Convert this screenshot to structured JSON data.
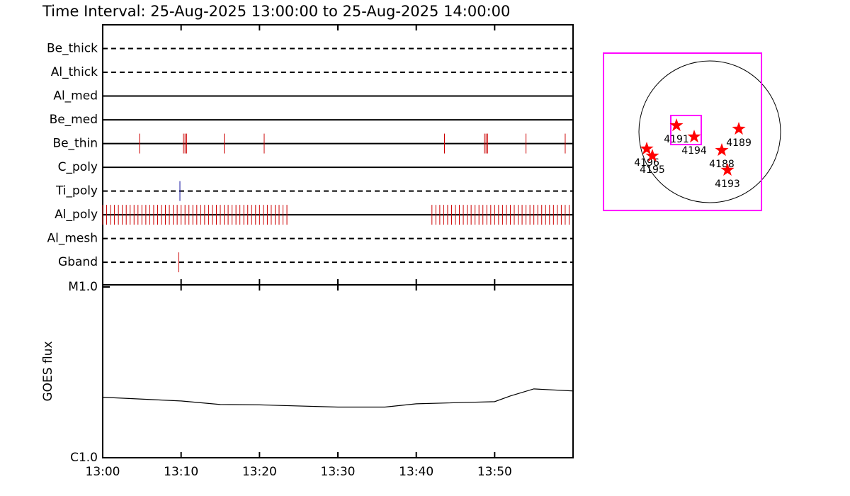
{
  "chart_data": [
    {
      "type": "timeline",
      "title": "Time Interval: 25-Aug-2025 13:00:00 to 25-Aug-2025 14:00:00",
      "xlim": [
        0,
        60
      ],
      "xticks": [
        {
          "value": 0,
          "label": "13:00"
        },
        {
          "value": 10,
          "label": "13:10"
        },
        {
          "value": 20,
          "label": "13:20"
        },
        {
          "value": 30,
          "label": "13:30"
        },
        {
          "value": 40,
          "label": "13:40"
        },
        {
          "value": 50,
          "label": "13:50"
        }
      ],
      "series": [
        {
          "name": "Be_thick",
          "style": "dashed",
          "color": "#cc0000",
          "values": []
        },
        {
          "name": "Al_thick",
          "style": "dashed",
          "color": "#cc0000",
          "values": []
        },
        {
          "name": "Al_med",
          "style": "solid",
          "color": "#cc0000",
          "values": []
        },
        {
          "name": "Be_med",
          "style": "solid",
          "color": "#cc0000",
          "values": []
        },
        {
          "name": "Be_thin",
          "style": "solid",
          "color": "#cc0000",
          "values": [
            4.7,
            10.3,
            10.5,
            10.7,
            15.5,
            20.6,
            43.6,
            48.7,
            48.9,
            49.1,
            54.0,
            59.0
          ]
        },
        {
          "name": "C_poly",
          "style": "solid",
          "color": "#cc0000",
          "values": []
        },
        {
          "name": "Ti_poly",
          "style": "dashed",
          "color": "#1a1aa0",
          "values": [
            9.85
          ]
        },
        {
          "name": "Al_poly",
          "style": "solid",
          "color": "#cc0000",
          "values": [
            0,
            0.5,
            1,
            1.5,
            2,
            2.5,
            3,
            3.5,
            4,
            4.5,
            5,
            5.5,
            6,
            6.5,
            7,
            7.5,
            8,
            8.5,
            9,
            9.5,
            10,
            10.5,
            11,
            11.5,
            12,
            12.5,
            13,
            13.5,
            14,
            14.5,
            15,
            15.5,
            16,
            16.5,
            17,
            17.5,
            18,
            18.5,
            19,
            19.5,
            20,
            20.5,
            21,
            21.5,
            22,
            22.5,
            23,
            23.5,
            42,
            42.5,
            43,
            43.5,
            44,
            44.5,
            45,
            45.5,
            46,
            46.5,
            47,
            47.5,
            48,
            48.5,
            49,
            49.5,
            50,
            50.5,
            51,
            51.5,
            52,
            52.5,
            53,
            53.5,
            54,
            54.5,
            55,
            55.5,
            56,
            56.5,
            57,
            57.5,
            58,
            58.5,
            59,
            59.5
          ]
        },
        {
          "name": "Al_mesh",
          "style": "dashed",
          "color": "#cc0000",
          "values": []
        },
        {
          "name": "Gband",
          "style": "dashed",
          "color": "#cc0000",
          "values": [
            9.7
          ]
        }
      ]
    },
    {
      "type": "line",
      "y_label": "GOES flux",
      "log_scale": true,
      "color": "#000000",
      "x": [
        0,
        10,
        15,
        20,
        30,
        36,
        40,
        50,
        52,
        55,
        60
      ],
      "values": [
        2.26e-06,
        2.15e-06,
        2.05e-06,
        2.04e-06,
        1.98e-06,
        1.98e-06,
        2.07e-06,
        2.13e-06,
        2.3e-06,
        2.53e-06,
        2.46e-06
      ],
      "ylim": [
        1e-06,
        1e-05
      ],
      "yticks": [
        {
          "value": 1e-06,
          "label": "C1.0"
        },
        {
          "value": 1e-05,
          "label": "M1.0"
        }
      ]
    },
    {
      "type": "disk",
      "radius": 960,
      "box_color": "#ff00ff",
      "star_color": "#ff0000",
      "fov": [
        [
          -1440,
          701,
          -1066,
          1066
        ],
        [
          -528,
          -115,
          -173,
          221
        ]
      ],
      "regions": [
        {
          "label": "4191",
          "x": -451,
          "y": 86
        },
        {
          "label": "4194",
          "x": -211,
          "y": -67
        },
        {
          "label": "4189",
          "x": 394,
          "y": 38
        },
        {
          "label": "4188",
          "x": 163,
          "y": -250
        },
        {
          "label": "4193",
          "x": 240,
          "y": -518
        },
        {
          "label": "4196",
          "x": -854,
          "y": -230
        },
        {
          "label": "4195",
          "x": -778,
          "y": -326
        }
      ]
    }
  ]
}
